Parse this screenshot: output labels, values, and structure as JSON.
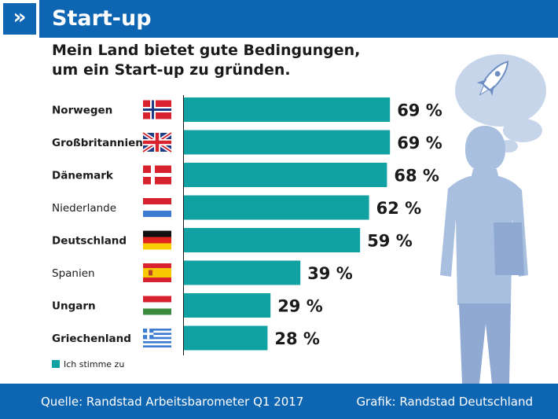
{
  "header": {
    "icon_glyph": "»",
    "title": "Start-up"
  },
  "footer": {
    "source": "Quelle: Randstad Arbeitsbarometer Q1 2017",
    "credit": "Grafik: Randstad Deutschland"
  },
  "colors": {
    "brand_blue": "#0e65b2",
    "bar": "#10a1a3",
    "figure_light": "#c6d5ea",
    "figure_mid": "#a9bfe0",
    "figure_dark": "#8fa9d3"
  },
  "chart_data": {
    "type": "bar",
    "orientation": "horizontal",
    "title": "Mein Land bietet gute Bedingungen,\num ein Start-up zu gründen.",
    "categories": [
      "Norwegen",
      "Großbritannien",
      "Dänemark",
      "Niederlande",
      "Deutschland",
      "Spanien",
      "Ungarn",
      "Griechenland"
    ],
    "bold_labels": [
      true,
      true,
      true,
      false,
      true,
      false,
      true,
      true
    ],
    "flags": [
      "flag-norway-icon",
      "flag-uk-icon",
      "flag-denmark-icon",
      "flag-netherlands-icon",
      "flag-germany-icon",
      "flag-spain-icon",
      "flag-hungary-icon",
      "flag-greece-icon"
    ],
    "series": [
      {
        "name": "Ich stimme zu",
        "values": [
          69,
          69,
          68,
          62,
          59,
          39,
          29,
          28
        ]
      }
    ],
    "value_suffix": " %",
    "legend": {
      "label": "Ich stimme zu",
      "placement": "bottom-left"
    },
    "xlim": [
      0,
      100
    ],
    "grid": false
  }
}
